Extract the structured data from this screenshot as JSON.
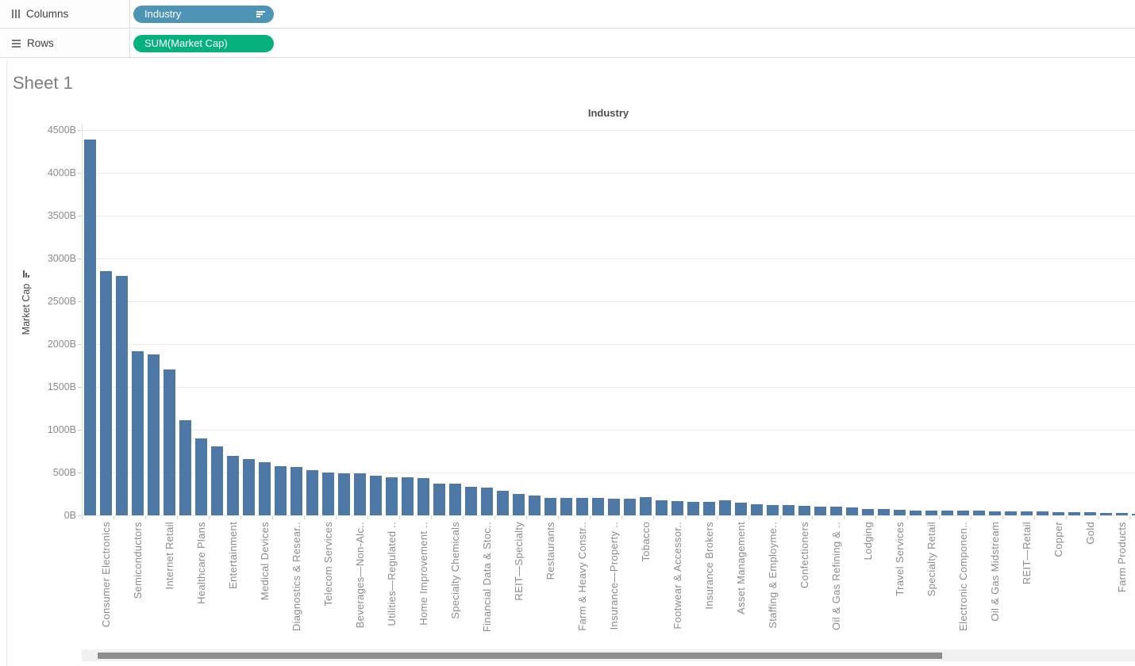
{
  "shelves": {
    "columns": {
      "label": "Columns",
      "pill": {
        "label": "Industry",
        "color": "#4e94b5",
        "sorted": "descending"
      }
    },
    "rows": {
      "label": "Rows",
      "pill": {
        "label": "SUM(Market Cap)",
        "color": "#07b17e"
      }
    }
  },
  "sheet": {
    "title": "Sheet 1"
  },
  "chart_data": {
    "type": "bar",
    "title": "Industry",
    "xlabel": "Industry",
    "ylabel": "Market Cap",
    "ylim": [
      0,
      4500
    ],
    "ytick_interval": 500,
    "ytick_labels": [
      "0B",
      "500B",
      "1000B",
      "1500B",
      "2000B",
      "2500B",
      "3000B",
      "3500B",
      "4000B",
      "4500B"
    ],
    "grid": true,
    "bar_color": "#4e79a7",
    "sorted": "descending",
    "x_label_frequency": "every other bar (labels between unlabeled bars are hidden by the axis density)",
    "bars": [
      {
        "label": "",
        "value": 4390
      },
      {
        "label": "Consumer Electronics",
        "value": 2850
      },
      {
        "label": "",
        "value": 2800
      },
      {
        "label": "Semiconductors",
        "value": 1920
      },
      {
        "label": "",
        "value": 1880
      },
      {
        "label": "Internet Retail",
        "value": 1700
      },
      {
        "label": "",
        "value": 1110
      },
      {
        "label": "Healthcare Plans",
        "value": 900
      },
      {
        "label": "",
        "value": 810
      },
      {
        "label": "Entertainment",
        "value": 695
      },
      {
        "label": "",
        "value": 660
      },
      {
        "label": "Medical Devices",
        "value": 620
      },
      {
        "label": "",
        "value": 575
      },
      {
        "label": "Diagnostics & Resear..",
        "value": 565
      },
      {
        "label": "",
        "value": 530
      },
      {
        "label": "Telecom Services",
        "value": 497
      },
      {
        "label": "",
        "value": 492
      },
      {
        "label": "Beverages—Non-Alc..",
        "value": 488
      },
      {
        "label": "",
        "value": 465
      },
      {
        "label": "Utilities—Regulated ..",
        "value": 442
      },
      {
        "label": "",
        "value": 440
      },
      {
        "label": "Home Improvement ..",
        "value": 432
      },
      {
        "label": "",
        "value": 372
      },
      {
        "label": "Specialty Chemicals",
        "value": 368
      },
      {
        "label": "",
        "value": 336
      },
      {
        "label": "Financial Data & Stoc..",
        "value": 322
      },
      {
        "label": "",
        "value": 288
      },
      {
        "label": "REIT—Specialty",
        "value": 250
      },
      {
        "label": "",
        "value": 232
      },
      {
        "label": "Restaurants",
        "value": 208
      },
      {
        "label": "",
        "value": 206
      },
      {
        "label": "Farm & Heavy Constr..",
        "value": 205
      },
      {
        "label": "",
        "value": 204
      },
      {
        "label": "Insurance—Property ..",
        "value": 190
      },
      {
        "label": "",
        "value": 199
      },
      {
        "label": "Tobacco",
        "value": 212
      },
      {
        "label": "",
        "value": 178
      },
      {
        "label": "Footwear & Accessor..",
        "value": 168
      },
      {
        "label": "",
        "value": 162
      },
      {
        "label": "Insurance Brokers",
        "value": 157
      },
      {
        "label": "",
        "value": 173
      },
      {
        "label": "Asset Management",
        "value": 148
      },
      {
        "label": "",
        "value": 132
      },
      {
        "label": "Staffing & Employme..",
        "value": 124
      },
      {
        "label": "",
        "value": 118
      },
      {
        "label": "Confectioners",
        "value": 112
      },
      {
        "label": "",
        "value": 106
      },
      {
        "label": "Oil & Gas Refining & ..",
        "value": 100
      },
      {
        "label": "",
        "value": 88
      },
      {
        "label": "Lodging",
        "value": 78
      },
      {
        "label": "",
        "value": 70
      },
      {
        "label": "Travel Services",
        "value": 63
      },
      {
        "label": "",
        "value": 60
      },
      {
        "label": "Specialty Retail",
        "value": 58
      },
      {
        "label": "",
        "value": 56
      },
      {
        "label": "Electronic Componen..",
        "value": 54
      },
      {
        "label": "",
        "value": 52
      },
      {
        "label": "Oil & Gas Midstream",
        "value": 50
      },
      {
        "label": "",
        "value": 48
      },
      {
        "label": "REIT—Retail",
        "value": 46
      },
      {
        "label": "",
        "value": 43
      },
      {
        "label": "Copper",
        "value": 40
      },
      {
        "label": "",
        "value": 36
      },
      {
        "label": "Gold",
        "value": 33
      },
      {
        "label": "",
        "value": 28
      },
      {
        "label": "Farm Products",
        "value": 24
      },
      {
        "label": "",
        "value": 18
      }
    ]
  },
  "colors": {
    "bar": "#4e79a7",
    "pill_dimension": "#4e94b5",
    "pill_measure": "#07b17e",
    "axis_text": "#8b8b8b",
    "gridline": "#ededed",
    "scrollbar_thumb": "#8d8d8d",
    "scrollbar_track": "#f1f1f1"
  }
}
